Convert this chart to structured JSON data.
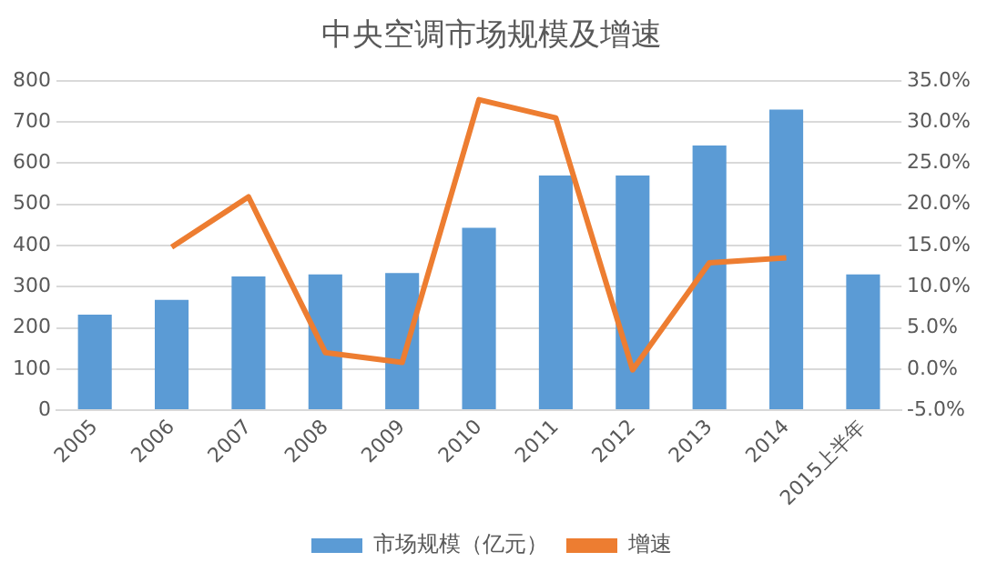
{
  "chart_data": {
    "type": "bar",
    "title": "中央空调市场规模及增速",
    "categories": [
      "2005",
      "2006",
      "2007",
      "2008",
      "2009",
      "2010",
      "2011",
      "2012",
      "2013",
      "2014",
      "2015上半年"
    ],
    "series": [
      {
        "name": "市场规模（亿元）",
        "color": "#5b9bd5",
        "values": [
          232,
          268,
          325,
          330,
          333,
          443,
          570,
          570,
          643,
          730,
          330
        ]
      },
      {
        "name": "增速",
        "type": "line",
        "axis": "y2",
        "color": "#ed7d31",
        "values": [
          null,
          14.8,
          20.9,
          2.0,
          0.8,
          32.7,
          30.5,
          -0.1,
          12.9,
          13.5,
          null
        ]
      }
    ],
    "ylim": [
      0,
      800
    ],
    "yticks": [
      0,
      100,
      200,
      300,
      400,
      500,
      600,
      700,
      800
    ],
    "y2lim": [
      -5,
      35
    ],
    "y2ticks": [
      {
        "value": -5,
        "label": "-5.0%"
      },
      {
        "value": 0,
        "label": "0.0%"
      },
      {
        "value": 5,
        "label": "5.0%"
      },
      {
        "value": 10,
        "label": "10.0%"
      },
      {
        "value": 15,
        "label": "15.0%"
      },
      {
        "value": 20,
        "label": "20.0%"
      },
      {
        "value": 25,
        "label": "25.0%"
      },
      {
        "value": 30,
        "label": "30.0%"
      },
      {
        "value": 35,
        "label": "35.0%"
      }
    ],
    "grid": "y",
    "legend": "bottom",
    "marker": "none",
    "line_style": "solid"
  }
}
